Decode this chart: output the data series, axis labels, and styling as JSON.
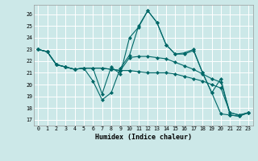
{
  "title": "",
  "xlabel": "Humidex (Indice chaleur)",
  "background_color": "#cce8e8",
  "grid_color": "#ffffff",
  "line_color": "#006868",
  "xlim": [
    -0.5,
    23.5
  ],
  "ylim": [
    16.5,
    26.8
  ],
  "xticks": [
    0,
    1,
    2,
    3,
    4,
    5,
    6,
    7,
    8,
    9,
    10,
    11,
    12,
    13,
    14,
    15,
    16,
    17,
    18,
    19,
    20,
    21,
    22,
    23
  ],
  "yticks": [
    17,
    18,
    19,
    20,
    21,
    22,
    23,
    24,
    25,
    26
  ],
  "series": [
    [
      23.0,
      22.8,
      21.7,
      21.5,
      21.3,
      21.4,
      20.3,
      18.7,
      19.3,
      21.4,
      22.5,
      25.0,
      26.3,
      25.3,
      23.4,
      22.6,
      22.7,
      23.0,
      21.0,
      19.3,
      20.5,
      17.4,
      17.3,
      17.6
    ],
    [
      23.0,
      22.8,
      21.7,
      21.5,
      21.3,
      21.4,
      21.4,
      19.2,
      21.5,
      20.9,
      24.0,
      24.9,
      26.3,
      25.3,
      23.4,
      22.6,
      22.6,
      22.9,
      21.0,
      19.3,
      17.5,
      17.4,
      17.3,
      17.6
    ],
    [
      23.0,
      22.8,
      21.7,
      21.5,
      21.3,
      21.4,
      21.4,
      21.4,
      21.3,
      21.2,
      21.2,
      21.1,
      21.0,
      21.0,
      21.0,
      20.9,
      20.7,
      20.5,
      20.3,
      20.0,
      19.7,
      17.6,
      17.4,
      17.6
    ],
    [
      23.0,
      22.8,
      21.7,
      21.5,
      21.3,
      21.4,
      21.4,
      21.4,
      21.3,
      21.2,
      22.3,
      22.4,
      22.4,
      22.3,
      22.2,
      21.9,
      21.6,
      21.3,
      20.9,
      20.5,
      20.2,
      17.6,
      17.4,
      17.6
    ]
  ]
}
